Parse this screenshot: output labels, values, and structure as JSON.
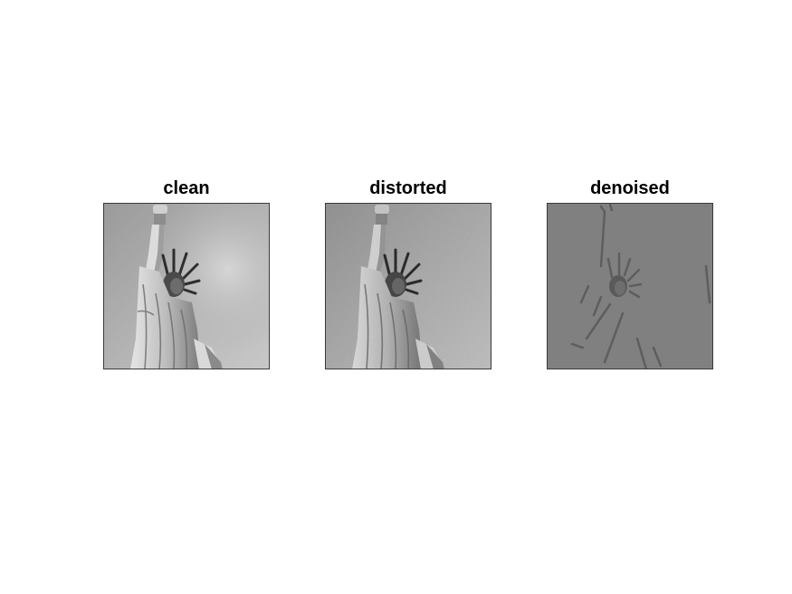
{
  "figure": {
    "panels": [
      {
        "title": "clean",
        "image": "statue-of-liberty-grayscale-clean"
      },
      {
        "title": "distorted",
        "image": "statue-of-liberty-grayscale-noisy"
      },
      {
        "title": "denoised",
        "image": "statue-of-liberty-denoised-flat-gray"
      }
    ]
  },
  "colors": {
    "background": "#ffffff",
    "clean_sky": "#a9a9a9",
    "denoised_flat": "#808080"
  }
}
